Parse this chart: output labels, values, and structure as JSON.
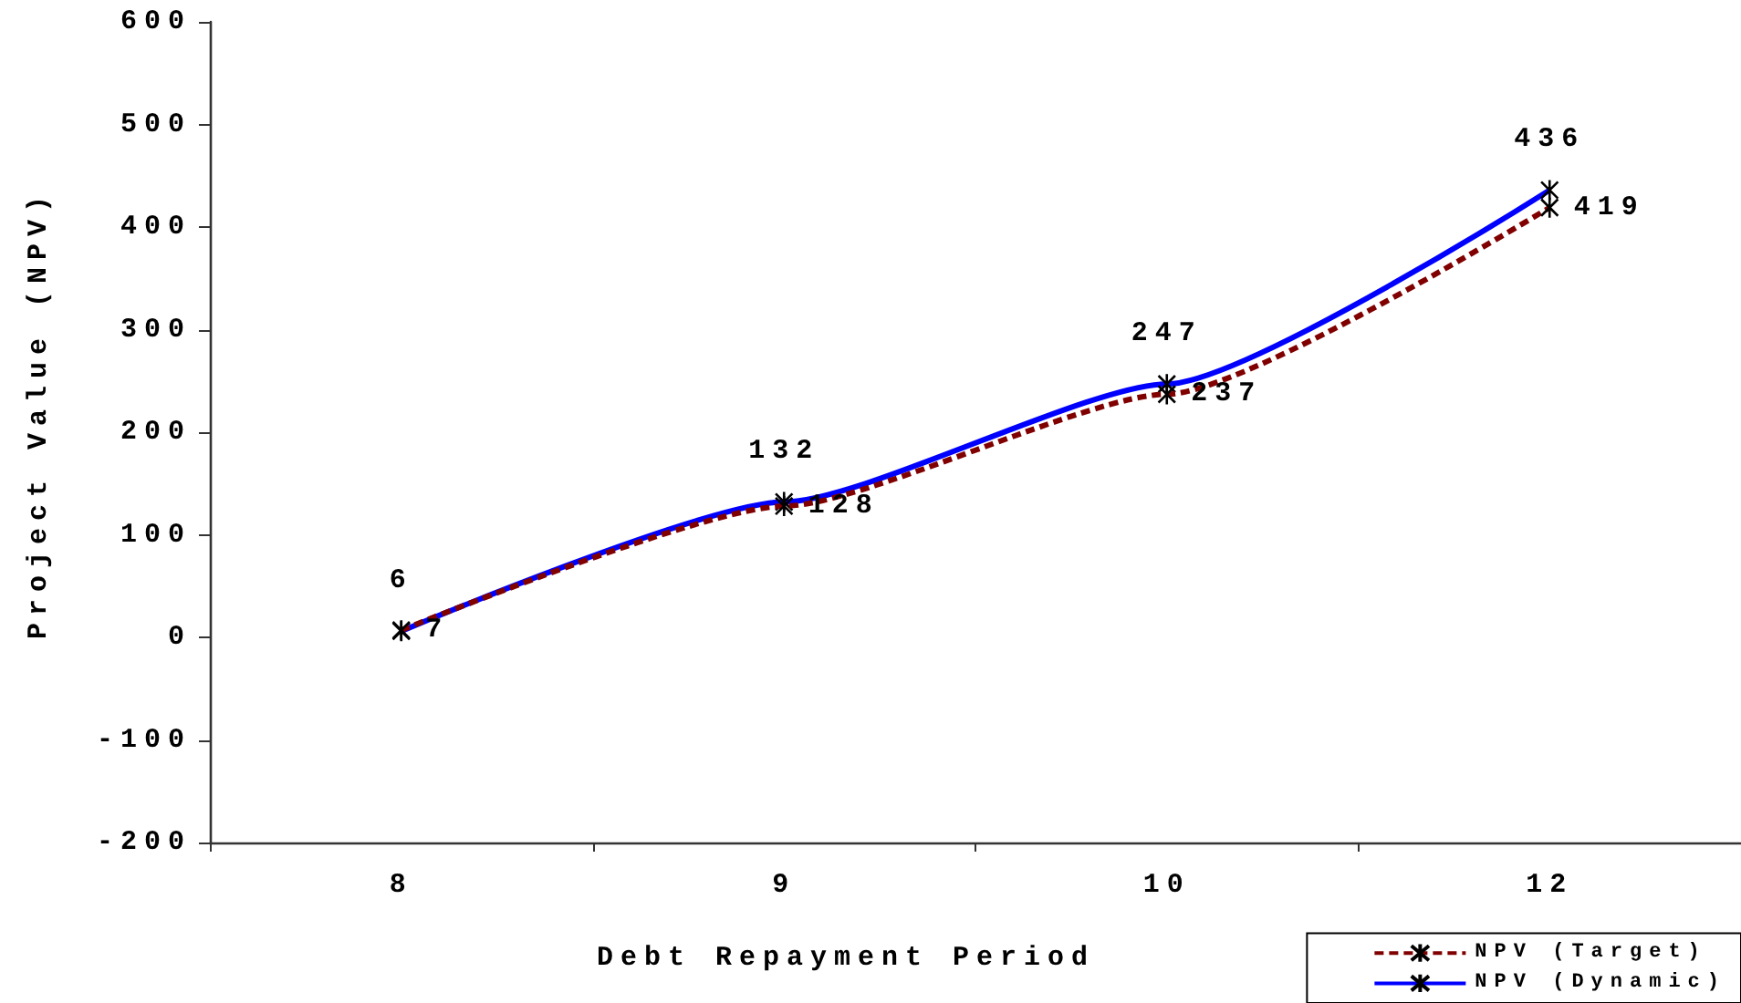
{
  "chart_data": {
    "type": "line",
    "xlabel": "Debt Repayment Period",
    "ylabel": "Project Value (NPV)",
    "categories": [
      "8",
      "9",
      "10",
      "12"
    ],
    "series": [
      {
        "name": "NPV (Target)",
        "color": "#800000",
        "line_style": "dashed",
        "values": [
          7,
          128,
          237,
          419
        ]
      },
      {
        "name": "NPV (Dynamic)",
        "color": "#0000ff",
        "line_style": "solid",
        "values": [
          6,
          132,
          247,
          436
        ]
      }
    ],
    "ylim": [
      -200,
      600
    ],
    "yticks": [
      -200,
      -100,
      0,
      100,
      200,
      300,
      400,
      500,
      600
    ],
    "grid": false,
    "legend": "bottom right",
    "marker": "cross",
    "data_labels": true
  }
}
